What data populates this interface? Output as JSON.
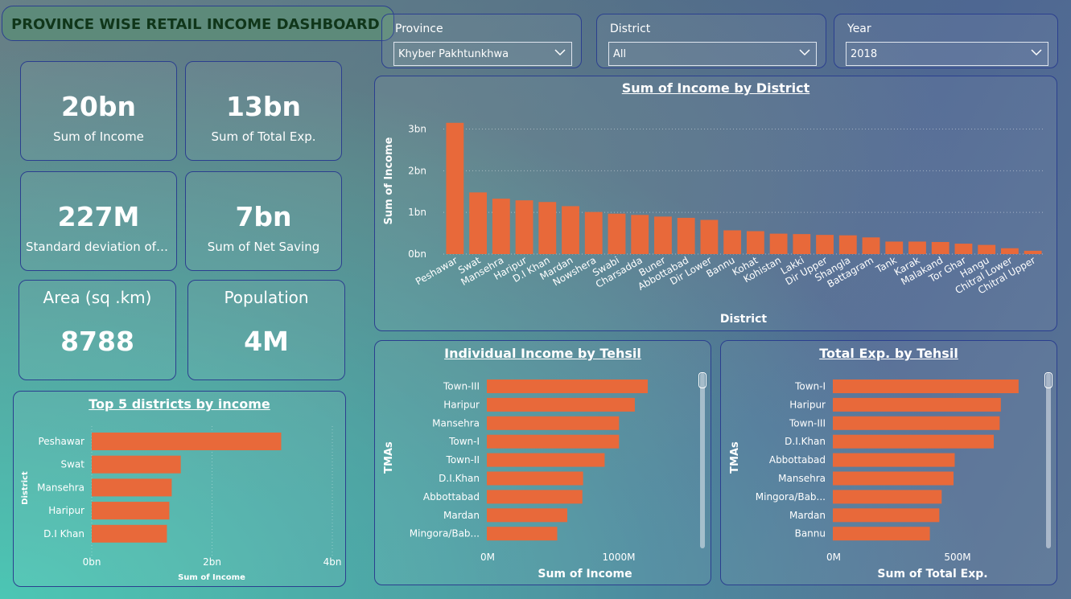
{
  "header": {
    "title": "PROVINCE WISE RETAIL INCOME DASHBOARD"
  },
  "slicers": [
    {
      "label": "Province",
      "value": "Khyber Pakhtunkhwa"
    },
    {
      "label": "District",
      "value": "All"
    },
    {
      "label": "Year",
      "value": "2018"
    }
  ],
  "kpis": {
    "income": {
      "value": "20bn",
      "label": "Sum of Income"
    },
    "total_exp": {
      "value": "13bn",
      "label": "Sum of Total Exp."
    },
    "std_dev": {
      "value": "227M",
      "label": "Standard deviation of ..."
    },
    "net_saving": {
      "value": "7bn",
      "label": "Sum of Net Saving"
    },
    "area": {
      "value": "8788",
      "label": "Area (sq .km)"
    },
    "population": {
      "value": "4M",
      "label": "Population"
    }
  },
  "colors": {
    "bar": "#e8693a",
    "text": "#ffffff",
    "border": "#2b3f8f",
    "title_text": "#10361a"
  },
  "chart_data": [
    {
      "type": "bar",
      "title": "Sum of Income by District",
      "xlabel": "District",
      "ylabel": "Sum of Income",
      "ylim": [
        0,
        3.3
      ],
      "yticks": [
        "0bn",
        "1bn",
        "2bn",
        "3bn"
      ],
      "grid": true,
      "categories": [
        "Peshawar",
        "Swat",
        "Mansehra",
        "Haripur",
        "D.I Khan",
        "Mardan",
        "Nowshera",
        "Swabi",
        "Charsadda",
        "Buner",
        "Abbottabad",
        "Dir Lower",
        "Bannu",
        "Kohat",
        "Kohistan",
        "Lakki",
        "Dir Upper",
        "Shangla",
        "Battagram",
        "Tank",
        "Karak",
        "Malakand",
        "Tor Ghar",
        "Hangu",
        "Chitral Lower",
        "Chitral Upper"
      ],
      "values": [
        3.15,
        1.48,
        1.33,
        1.29,
        1.25,
        1.15,
        1.01,
        0.97,
        0.94,
        0.9,
        0.87,
        0.82,
        0.57,
        0.55,
        0.49,
        0.48,
        0.46,
        0.45,
        0.4,
        0.3,
        0.3,
        0.29,
        0.25,
        0.22,
        0.14,
        0.08
      ]
    },
    {
      "type": "bar",
      "orientation": "horizontal",
      "title": "Top 5 districts by income",
      "xlabel": "Sum of Income",
      "ylabel": "District",
      "xlim": [
        0,
        4
      ],
      "xticks": [
        "0bn",
        "2bn",
        "4bn"
      ],
      "categories": [
        "Peshawar",
        "Swat",
        "Mansehra",
        "Haripur",
        "D.I Khan"
      ],
      "values": [
        3.15,
        1.48,
        1.33,
        1.29,
        1.25
      ]
    },
    {
      "type": "bar",
      "orientation": "horizontal",
      "title": "Individual Income by Tehsil",
      "xlabel": "Sum of Income",
      "ylabel": "TMAs",
      "xlim": [
        0,
        1400
      ],
      "xticks": [
        "0M",
        "1000M"
      ],
      "categories": [
        "Town-III",
        "Haripur",
        "Mansehra",
        "Town-I",
        "Town-II",
        "D.I.Khan",
        "Abbottabad",
        "Mardan",
        "Mingora/Bab..."
      ],
      "values": [
        1120,
        1030,
        920,
        920,
        820,
        670,
        665,
        560,
        490
      ]
    },
    {
      "type": "bar",
      "orientation": "horizontal",
      "title": "Total Exp. by Tehsil",
      "xlabel": "Sum of Total Exp.",
      "ylabel": "TMAs",
      "xlim": [
        0,
        850
      ],
      "xticks": [
        "0M",
        "500M"
      ],
      "categories": [
        "Town-I",
        "Haripur",
        "Town-III",
        "D.I.Khan",
        "Abbottabad",
        "Mansehra",
        "Mingora/Bab...",
        "Mardan",
        "Bannu"
      ],
      "values": [
        785,
        710,
        705,
        680,
        515,
        510,
        460,
        450,
        410
      ]
    }
  ]
}
